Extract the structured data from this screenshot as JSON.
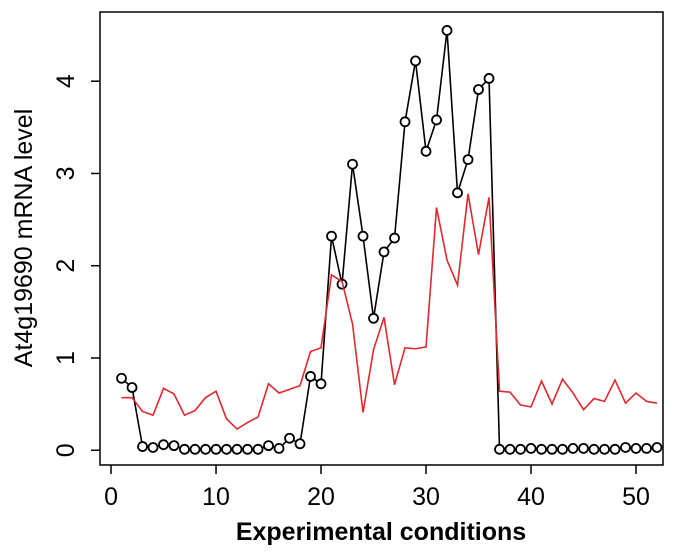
{
  "chart_data": {
    "type": "line",
    "xlabel": "Experimental conditions",
    "ylabel": "At4g19690 mRNA level",
    "x": [
      1,
      2,
      3,
      4,
      5,
      6,
      7,
      8,
      9,
      10,
      11,
      12,
      13,
      14,
      15,
      16,
      17,
      18,
      19,
      20,
      21,
      22,
      23,
      24,
      25,
      26,
      27,
      28,
      29,
      30,
      31,
      32,
      33,
      34,
      35,
      36,
      37,
      38,
      39,
      40,
      41,
      42,
      43,
      44,
      45,
      46,
      47,
      48,
      49,
      50,
      51,
      52
    ],
    "series": [
      {
        "color": "#000000",
        "marker": "circle",
        "values": [
          0.78,
          0.68,
          0.04,
          0.03,
          0.06,
          0.05,
          0.01,
          0.01,
          0.01,
          0.01,
          0.01,
          0.01,
          0.01,
          0.01,
          0.05,
          0.02,
          0.13,
          0.07,
          0.8,
          0.72,
          2.32,
          1.8,
          3.1,
          2.32,
          1.43,
          2.15,
          2.3,
          3.56,
          4.22,
          3.24,
          3.58,
          4.55,
          2.79,
          3.15,
          3.91,
          4.03,
          0.01,
          0.01,
          0.01,
          0.02,
          0.01,
          0.01,
          0.01,
          0.02,
          0.02,
          0.01,
          0.01,
          0.01,
          0.03,
          0.02,
          0.02,
          0.03
        ]
      },
      {
        "color": "#e0282e",
        "marker": "none",
        "values": [
          0.57,
          0.57,
          0.42,
          0.38,
          0.67,
          0.61,
          0.38,
          0.43,
          0.57,
          0.64,
          0.34,
          0.23,
          0.3,
          0.36,
          0.72,
          0.62,
          0.66,
          0.7,
          1.07,
          1.11,
          1.9,
          1.83,
          1.37,
          0.41,
          1.09,
          1.44,
          0.71,
          1.11,
          1.1,
          1.12,
          2.63,
          2.06,
          1.79,
          2.78,
          2.12,
          2.74,
          0.64,
          0.63,
          0.49,
          0.47,
          0.75,
          0.5,
          0.77,
          0.62,
          0.44,
          0.56,
          0.53,
          0.76,
          0.51,
          0.62,
          0.53,
          0.51
        ]
      }
    ],
    "xlim": [
      -1.05,
      52.57
    ],
    "ylim": [
      -0.16,
      4.75
    ],
    "xticks": [
      0,
      10,
      20,
      30,
      40,
      50
    ],
    "yticks": [
      0,
      1,
      2,
      3,
      4
    ]
  }
}
